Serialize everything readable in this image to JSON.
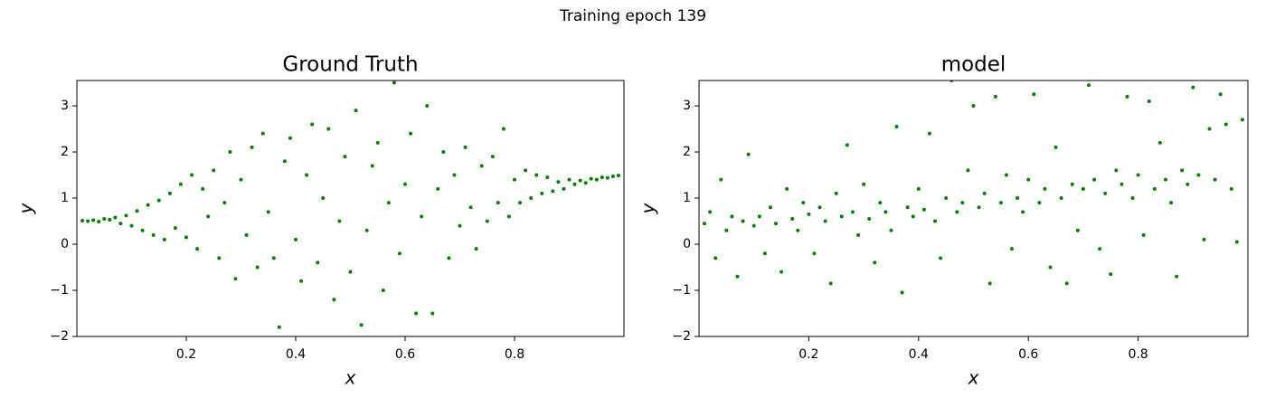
{
  "suptitle": "Training epoch 139",
  "chart_data": [
    {
      "type": "scatter",
      "title": "Ground Truth",
      "x_label": "x",
      "y_label": "y",
      "color": "#008000",
      "xlim": [
        0.0,
        1.0
      ],
      "ylim": [
        -2,
        3.55
      ],
      "xticks": [
        0.2,
        0.4,
        0.6,
        0.8
      ],
      "yticks": [
        {
          "value": -2,
          "label": "−2"
        },
        {
          "value": -1,
          "label": "−1"
        },
        0,
        1,
        2,
        3
      ],
      "x": [
        0.01,
        0.02,
        0.03,
        0.04,
        0.05,
        0.06,
        0.07,
        0.08,
        0.09,
        0.1,
        0.11,
        0.12,
        0.13,
        0.14,
        0.15,
        0.16,
        0.17,
        0.18,
        0.19,
        0.2,
        0.21,
        0.22,
        0.23,
        0.24,
        0.25,
        0.26,
        0.27,
        0.28,
        0.29,
        0.3,
        0.31,
        0.32,
        0.33,
        0.34,
        0.35,
        0.36,
        0.37,
        0.38,
        0.39,
        0.4,
        0.41,
        0.42,
        0.43,
        0.44,
        0.45,
        0.46,
        0.47,
        0.48,
        0.49,
        0.5,
        0.51,
        0.52,
        0.53,
        0.54,
        0.55,
        0.56,
        0.57,
        0.58,
        0.59,
        0.6,
        0.61,
        0.62,
        0.63,
        0.64,
        0.65,
        0.66,
        0.67,
        0.68,
        0.69,
        0.7,
        0.71,
        0.72,
        0.73,
        0.74,
        0.75,
        0.76,
        0.77,
        0.78,
        0.79,
        0.8,
        0.81,
        0.82,
        0.83,
        0.84,
        0.85,
        0.86,
        0.87,
        0.88,
        0.89,
        0.9,
        0.91,
        0.92,
        0.93,
        0.94,
        0.95,
        0.96,
        0.97,
        0.98,
        0.99
      ],
      "y": [
        0.51,
        0.5,
        0.52,
        0.49,
        0.55,
        0.53,
        0.58,
        0.45,
        0.62,
        0.4,
        0.72,
        0.3,
        0.85,
        0.2,
        0.95,
        0.1,
        1.1,
        0.35,
        1.3,
        0.15,
        1.5,
        -0.1,
        1.2,
        0.6,
        1.6,
        -0.3,
        0.9,
        2.0,
        -0.75,
        1.4,
        0.2,
        2.1,
        -0.5,
        2.4,
        0.7,
        -0.3,
        -1.8,
        1.8,
        2.3,
        0.1,
        -0.8,
        1.5,
        2.6,
        -0.4,
        1.0,
        2.5,
        -1.2,
        0.5,
        1.9,
        -0.6,
        2.9,
        -1.75,
        0.3,
        1.7,
        2.2,
        -1.0,
        0.9,
        3.5,
        -0.2,
        1.3,
        2.4,
        -1.5,
        0.6,
        3.0,
        -1.5,
        1.2,
        2.0,
        -0.3,
        1.5,
        0.4,
        2.1,
        0.8,
        -0.1,
        1.7,
        0.5,
        1.9,
        0.9,
        2.5,
        0.6,
        1.4,
        0.9,
        1.6,
        1.0,
        1.5,
        1.1,
        1.45,
        1.15,
        1.35,
        1.2,
        1.4,
        1.3,
        1.38,
        1.33,
        1.42,
        1.4,
        1.45,
        1.44,
        1.47,
        1.49
      ]
    },
    {
      "type": "scatter",
      "title": "model",
      "x_label": "x",
      "y_label": "y",
      "color": "#008000",
      "xlim": [
        0.0,
        1.0
      ],
      "ylim": [
        -2,
        3.55
      ],
      "xticks": [
        0.2,
        0.4,
        0.6,
        0.8
      ],
      "yticks": [
        {
          "value": -2,
          "label": "−2"
        },
        {
          "value": -1,
          "label": "−1"
        },
        0,
        1,
        2,
        3
      ],
      "x": [
        0.01,
        0.02,
        0.03,
        0.04,
        0.05,
        0.06,
        0.07,
        0.08,
        0.09,
        0.1,
        0.11,
        0.12,
        0.13,
        0.14,
        0.15,
        0.16,
        0.17,
        0.18,
        0.19,
        0.2,
        0.21,
        0.22,
        0.23,
        0.24,
        0.25,
        0.26,
        0.27,
        0.28,
        0.29,
        0.3,
        0.31,
        0.32,
        0.33,
        0.34,
        0.35,
        0.36,
        0.37,
        0.38,
        0.39,
        0.4,
        0.41,
        0.42,
        0.43,
        0.44,
        0.45,
        0.46,
        0.47,
        0.48,
        0.49,
        0.5,
        0.51,
        0.52,
        0.53,
        0.54,
        0.55,
        0.56,
        0.57,
        0.58,
        0.59,
        0.6,
        0.61,
        0.62,
        0.63,
        0.64,
        0.65,
        0.66,
        0.67,
        0.68,
        0.69,
        0.7,
        0.71,
        0.72,
        0.73,
        0.74,
        0.75,
        0.76,
        0.77,
        0.78,
        0.79,
        0.8,
        0.81,
        0.82,
        0.83,
        0.84,
        0.85,
        0.86,
        0.87,
        0.88,
        0.89,
        0.9,
        0.91,
        0.92,
        0.93,
        0.94,
        0.95,
        0.96,
        0.97,
        0.98,
        0.99
      ],
      "y": [
        0.45,
        0.7,
        -0.3,
        1.4,
        0.3,
        0.6,
        -0.7,
        0.5,
        1.95,
        0.4,
        0.6,
        -0.2,
        0.8,
        0.45,
        -0.6,
        1.2,
        0.55,
        0.3,
        0.9,
        0.65,
        -0.2,
        0.8,
        0.5,
        -0.85,
        1.1,
        0.6,
        2.15,
        0.7,
        0.2,
        1.3,
        0.55,
        -0.4,
        0.9,
        0.7,
        0.3,
        2.55,
        -1.05,
        0.8,
        0.6,
        1.2,
        0.75,
        2.4,
        0.5,
        -0.3,
        1.0,
        3.55,
        0.7,
        0.9,
        1.6,
        3.0,
        0.8,
        1.1,
        -0.85,
        3.2,
        0.9,
        1.5,
        -0.1,
        1.0,
        0.7,
        1.4,
        3.25,
        0.9,
        1.2,
        -0.5,
        2.1,
        1.0,
        -0.85,
        1.3,
        0.3,
        1.2,
        3.45,
        1.4,
        -0.1,
        1.1,
        -0.65,
        1.6,
        1.3,
        3.2,
        1.0,
        1.5,
        0.2,
        3.1,
        1.2,
        2.2,
        1.4,
        0.9,
        -0.7,
        1.6,
        1.3,
        3.4,
        1.5,
        0.1,
        2.5,
        1.4,
        3.25,
        2.6,
        1.2,
        0.05,
        2.7
      ]
    }
  ]
}
